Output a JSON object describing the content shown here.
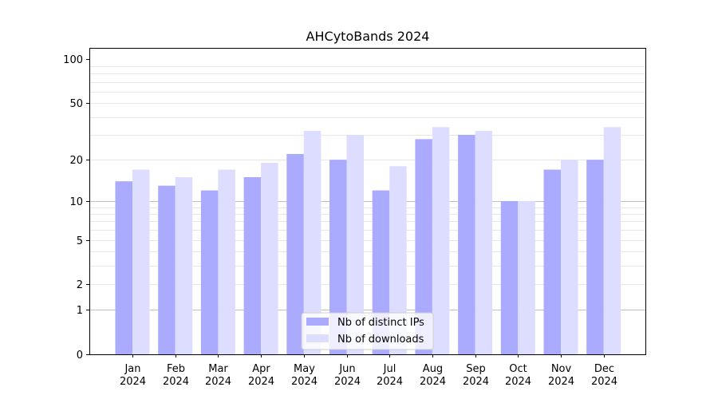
{
  "chart_data": {
    "type": "bar",
    "title": "AHCytoBands 2024",
    "xlabel": "",
    "ylabel": "",
    "y_scale": "log(1+y)",
    "ylim": [
      0,
      120
    ],
    "y_ticks": [
      0,
      1,
      2,
      5,
      10,
      20,
      50,
      100
    ],
    "grid": "horizontal minor lines",
    "legend_position": "bottom-center",
    "categories": [
      [
        "Jan",
        "2024"
      ],
      [
        "Feb",
        "2024"
      ],
      [
        "Mar",
        "2024"
      ],
      [
        "Apr",
        "2024"
      ],
      [
        "May",
        "2024"
      ],
      [
        "Jun",
        "2024"
      ],
      [
        "Jul",
        "2024"
      ],
      [
        "Aug",
        "2024"
      ],
      [
        "Sep",
        "2024"
      ],
      [
        "Oct",
        "2024"
      ],
      [
        "Nov",
        "2024"
      ],
      [
        "Dec",
        "2024"
      ]
    ],
    "series": [
      {
        "name": "Nb of distinct IPs",
        "color": "#aaaaff",
        "values": [
          14,
          13,
          12,
          15,
          22,
          20,
          12,
          28,
          30,
          10,
          17,
          20
        ]
      },
      {
        "name": "Nb of downloads",
        "color": "#ddddff",
        "values": [
          17,
          15,
          17,
          19,
          32,
          30,
          18,
          34,
          32,
          10,
          20,
          34
        ]
      }
    ]
  }
}
